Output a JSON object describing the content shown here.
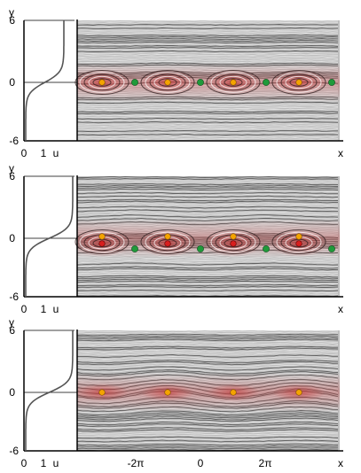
{
  "colors": {
    "background": "#ffffff",
    "field_gray": "#bdbdbd",
    "streak_dark": "#3a3a3a",
    "streak_light": "#f2f2f2",
    "shear_red": "#c43a3a",
    "center_orange": "#f5a400",
    "center_red": "#d81e1e",
    "saddle_green": "#1f9a3a",
    "profile_line": "#555555"
  },
  "panels": [
    {
      "profile_label": {
        "y": "y",
        "u": "u",
        "y_top": "6",
        "y_mid": "0",
        "y_bot": "-6",
        "u0": "0",
        "u1": "1"
      },
      "x_label": "x",
      "mode": "cats-eye",
      "centers": [
        -3,
        -1,
        1,
        3
      ],
      "saddles": [
        -2,
        0,
        2,
        4
      ]
    },
    {
      "profile_label": {
        "y": "y",
        "u": "u",
        "y_top": "6",
        "y_mid": "0",
        "y_bot": "-6",
        "u0": "0",
        "u1": "1"
      },
      "x_label": "x",
      "mode": "shifted",
      "centers": [
        -3,
        -1,
        1,
        3
      ],
      "saddles": [
        -2,
        0,
        2,
        4
      ]
    },
    {
      "profile_label": {
        "y": "y",
        "u": "u",
        "y_top": "6",
        "y_mid": "0",
        "y_bot": "-6",
        "u0": "0",
        "u1": "1"
      },
      "x_label": "x",
      "mode": "wavy",
      "centers": [
        -3,
        -1,
        1,
        3
      ],
      "saddles": []
    }
  ],
  "x_ticks": [
    "-2π",
    "0",
    "2π"
  ]
}
